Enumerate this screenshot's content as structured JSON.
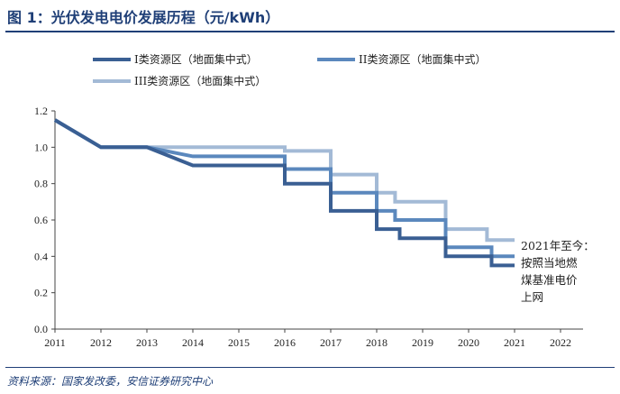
{
  "header": {
    "title": "图 1：光伏发电电价发展历程（元/kWh）"
  },
  "footer": {
    "source": "资料来源：国家发改委，安信证券研究中心"
  },
  "chart_data": {
    "type": "line",
    "step": true,
    "title": "光伏发电电价发展历程（元/kWh）",
    "xlabel": "",
    "ylabel": "",
    "xlim": [
      2011,
      2022
    ],
    "ylim": [
      0,
      1.2
    ],
    "x_ticks": [
      "2011",
      "2012",
      "2013",
      "2014",
      "2015",
      "2016",
      "2017",
      "2018",
      "2019",
      "2020",
      "2021",
      "2022"
    ],
    "y_ticks": [
      "0.0",
      "0.2",
      "0.4",
      "0.6",
      "0.8",
      "1.0",
      "1.2"
    ],
    "grid": false,
    "legend_position": "top",
    "series": [
      {
        "name": "I类资源区（地面集中式）",
        "color": "#3a5f93",
        "points": [
          [
            2011,
            1.15
          ],
          [
            2012,
            1.0
          ],
          [
            2013,
            1.0
          ],
          [
            2014,
            0.9
          ],
          [
            2016,
            0.9
          ],
          [
            2016,
            0.8
          ],
          [
            2017,
            0.8
          ],
          [
            2017,
            0.65
          ],
          [
            2018,
            0.65
          ],
          [
            2018,
            0.55
          ],
          [
            2018.5,
            0.55
          ],
          [
            2018.5,
            0.5
          ],
          [
            2019.5,
            0.5
          ],
          [
            2019.5,
            0.4
          ],
          [
            2020.5,
            0.4
          ],
          [
            2020.5,
            0.35
          ],
          [
            2021,
            0.35
          ]
        ]
      },
      {
        "name": "II类资源区（地面集中式）",
        "color": "#5b88bd",
        "points": [
          [
            2011,
            1.15
          ],
          [
            2012,
            1.0
          ],
          [
            2013,
            1.0
          ],
          [
            2014,
            0.95
          ],
          [
            2016,
            0.95
          ],
          [
            2016,
            0.88
          ],
          [
            2017,
            0.88
          ],
          [
            2017,
            0.75
          ],
          [
            2018,
            0.75
          ],
          [
            2018,
            0.65
          ],
          [
            2018.4,
            0.65
          ],
          [
            2018.4,
            0.6
          ],
          [
            2019.5,
            0.6
          ],
          [
            2019.5,
            0.45
          ],
          [
            2020.5,
            0.45
          ],
          [
            2020.5,
            0.4
          ],
          [
            2021,
            0.4
          ]
        ]
      },
      {
        "name": "III类资源区（地面集中式）",
        "color": "#a3bad6",
        "points": [
          [
            2011,
            1.15
          ],
          [
            2012,
            1.0
          ],
          [
            2013,
            1.0
          ],
          [
            2016,
            1.0
          ],
          [
            2016,
            0.98
          ],
          [
            2017,
            0.98
          ],
          [
            2017,
            0.85
          ],
          [
            2018,
            0.85
          ],
          [
            2018,
            0.75
          ],
          [
            2018.4,
            0.75
          ],
          [
            2018.4,
            0.7
          ],
          [
            2019.5,
            0.7
          ],
          [
            2019.5,
            0.55
          ],
          [
            2020.4,
            0.55
          ],
          [
            2020.4,
            0.49
          ],
          [
            2021,
            0.49
          ]
        ]
      }
    ],
    "annotation": {
      "lines": [
        "2021年至今：",
        "按照当地燃",
        "煤基准电价",
        "上网"
      ]
    }
  }
}
